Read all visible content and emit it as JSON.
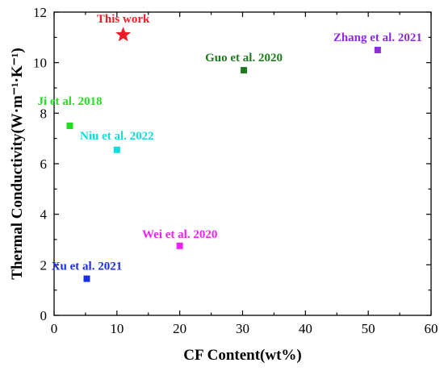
{
  "chart_data": {
    "type": "scatter",
    "xlabel": "CF Content(wt%)",
    "ylabel": "Thermal Conductivity(W·m⁻¹·K⁻¹)",
    "xlim": [
      0,
      60
    ],
    "ylim": [
      0,
      12
    ],
    "xticks": [
      "0",
      "10",
      "20",
      "30",
      "40",
      "50",
      "60"
    ],
    "yticks": [
      "0",
      "2",
      "4",
      "6",
      "8",
      "10",
      "12"
    ],
    "grid": false,
    "points": [
      {
        "name": "This work",
        "x": 11,
        "y": 11.1,
        "marker": "star",
        "color": "#ee1c25"
      },
      {
        "name": "Zhang et al. 2021",
        "x": 51.5,
        "y": 10.5,
        "marker": "square",
        "color": "#8b2be2"
      },
      {
        "name": "Guo et al. 2020",
        "x": 30.2,
        "y": 9.7,
        "marker": "square",
        "color": "#1f7a1f"
      },
      {
        "name": "Ji et al. 2018",
        "x": 2.5,
        "y": 7.5,
        "marker": "square",
        "color": "#22dd22"
      },
      {
        "name": "Niu et al. 2022",
        "x": 10,
        "y": 6.55,
        "marker": "square",
        "color": "#11dddd"
      },
      {
        "name": "Wei et al. 2020",
        "x": 20,
        "y": 2.75,
        "marker": "square",
        "color": "#ee22ee"
      },
      {
        "name": "Xu et al. 2021",
        "x": 5.2,
        "y": 1.45,
        "marker": "square",
        "color": "#1a2ee6"
      }
    ]
  }
}
